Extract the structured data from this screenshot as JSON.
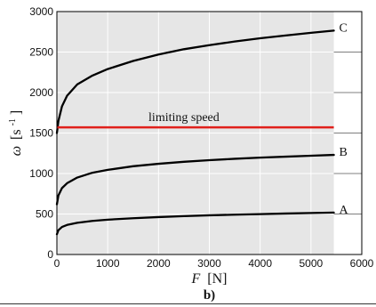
{
  "chart_data": {
    "type": "line",
    "xlabel_sym": "F",
    "xlabel_unit": "[N]",
    "ylabel_sym": "ω",
    "ylabel_unit": "[s",
    "ylabel_exp": "-1",
    "ylabel_close": "]",
    "xlim": [
      0,
      6000
    ],
    "ylim": [
      0,
      3000
    ],
    "xticks": [
      0,
      1000,
      2000,
      3000,
      4000,
      5000,
      6000
    ],
    "yticks": [
      0,
      500,
      1000,
      1500,
      2000,
      2500,
      3000
    ],
    "xtick_labels": [
      "0",
      "1000",
      "2000",
      "3000",
      "4000",
      "5000",
      "6000"
    ],
    "ytick_labels": [
      "0",
      "500",
      "1000",
      "1500",
      "2000",
      "2500",
      "3000"
    ],
    "grid": true,
    "shaded_region": {
      "x": [
        0,
        5450
      ],
      "y": [
        0,
        3000
      ],
      "color": "#e6e6e6"
    },
    "series": [
      {
        "name": "A",
        "color": "#000000",
        "x": [
          0,
          30,
          100,
          200,
          400,
          700,
          1000,
          1500,
          2000,
          2500,
          3000,
          3500,
          4000,
          4500,
          5000,
          5450
        ],
        "values": [
          250,
          300,
          340,
          365,
          392,
          415,
          430,
          448,
          462,
          474,
          484,
          492,
          499,
          506,
          512,
          518
        ]
      },
      {
        "name": "B",
        "color": "#000000",
        "x": [
          0,
          30,
          100,
          200,
          400,
          700,
          1000,
          1500,
          2000,
          2500,
          3000,
          3500,
          4000,
          4500,
          5000,
          5450
        ],
        "values": [
          620,
          730,
          820,
          880,
          950,
          1010,
          1045,
          1090,
          1120,
          1145,
          1165,
          1182,
          1196,
          1208,
          1220,
          1230
        ]
      },
      {
        "name": "C",
        "color": "#000000",
        "x": [
          0,
          30,
          100,
          200,
          400,
          700,
          1000,
          1500,
          2000,
          2500,
          3000,
          3500,
          4000,
          4500,
          5000,
          5450
        ],
        "values": [
          1500,
          1650,
          1830,
          1960,
          2100,
          2210,
          2290,
          2390,
          2470,
          2535,
          2585,
          2630,
          2670,
          2705,
          2738,
          2765
        ]
      }
    ],
    "limit_line": {
      "y": 1570,
      "x": [
        0,
        5450
      ],
      "color": "#e0201b",
      "label": "limiting speed"
    },
    "caption": "b)"
  }
}
